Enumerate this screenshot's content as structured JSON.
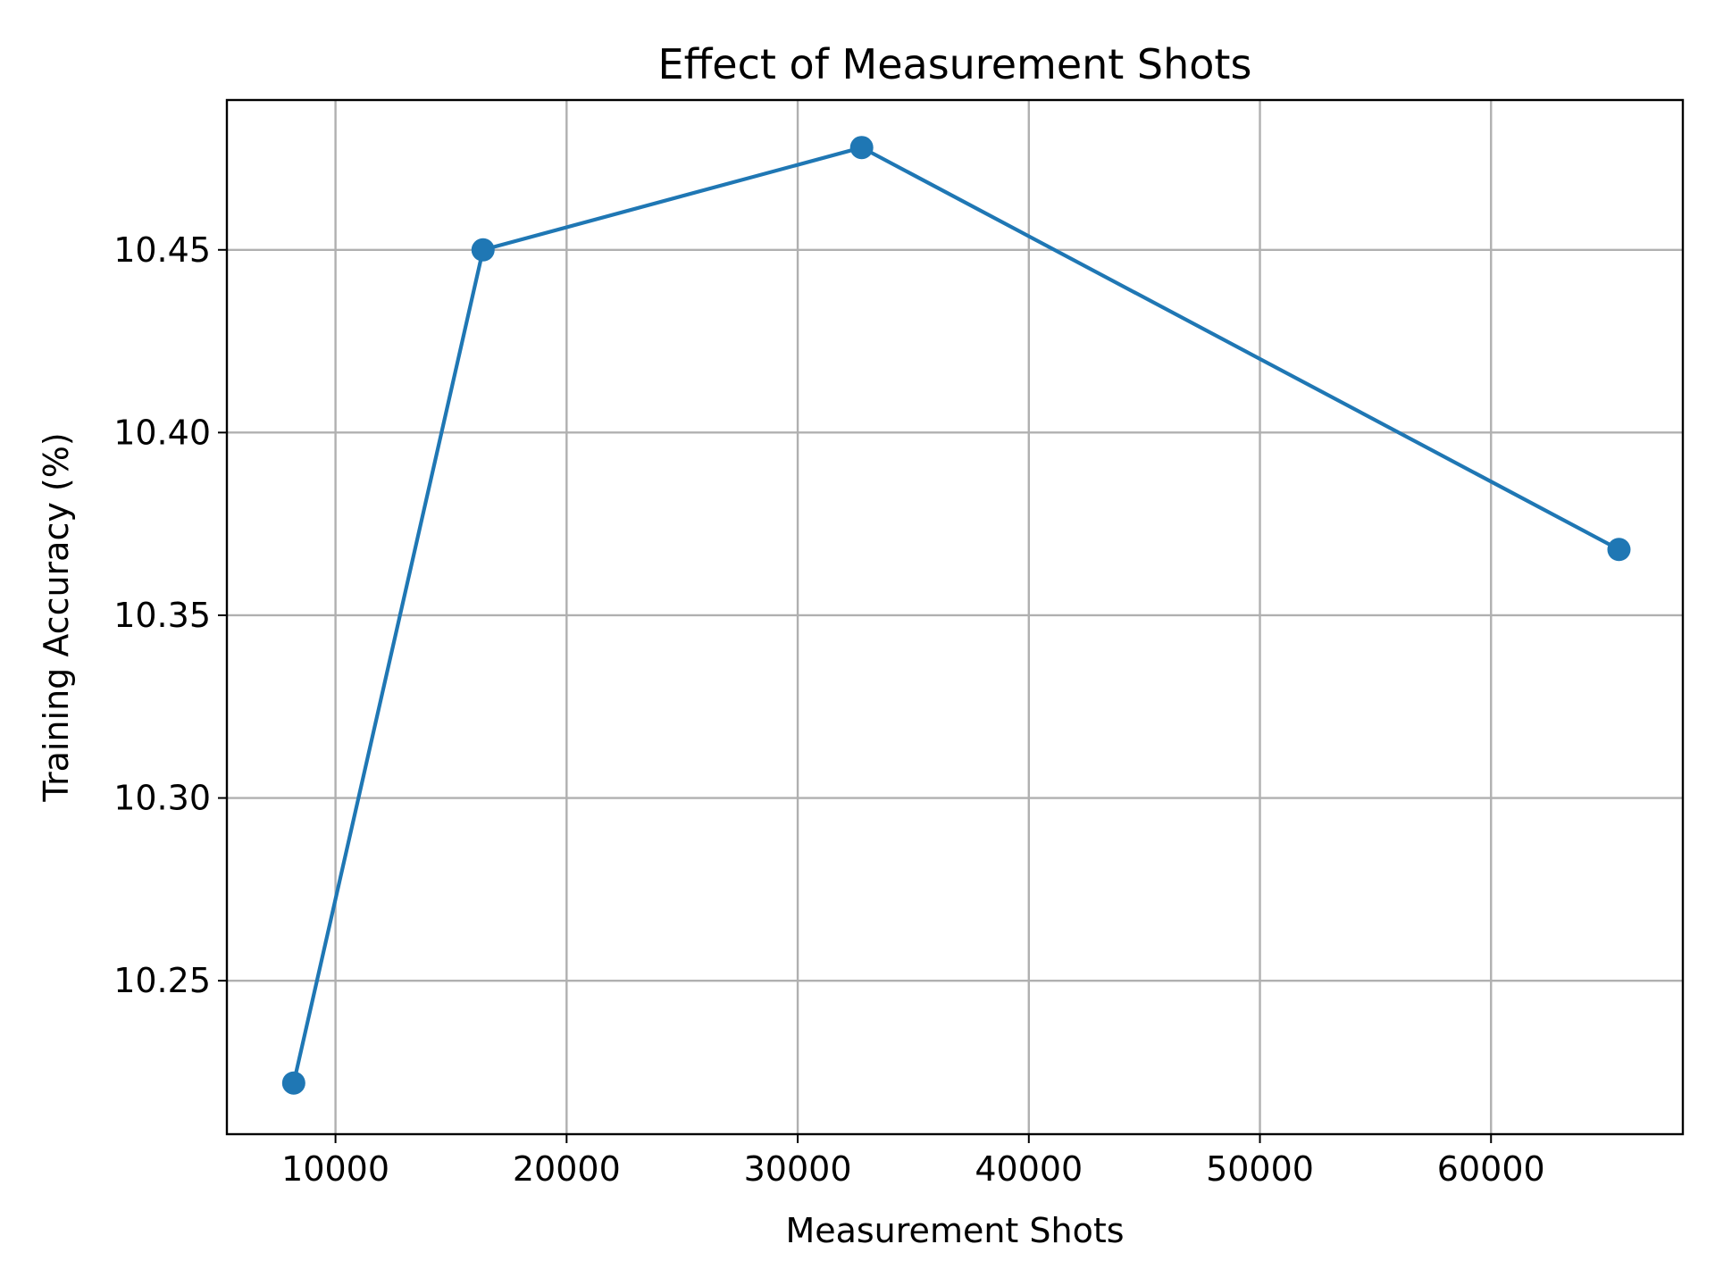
{
  "chart_data": {
    "type": "line",
    "title": "Effect of Measurement Shots",
    "xlabel": "Measurement Shots",
    "ylabel": "Training Accuracy (%)",
    "xlim": [
      5300,
      68300
    ],
    "ylim": [
      10.208,
      10.491
    ],
    "x_ticks": [
      10000,
      20000,
      30000,
      40000,
      50000,
      60000
    ],
    "x_tick_labels": [
      "10000",
      "20000",
      "30000",
      "40000",
      "50000",
      "60000"
    ],
    "y_ticks": [
      10.25,
      10.3,
      10.35,
      10.4,
      10.45
    ],
    "y_tick_labels": [
      "10.25",
      "10.30",
      "10.35",
      "10.40",
      "10.45"
    ],
    "grid": true,
    "series": [
      {
        "color": "#1f77b4",
        "marker": "circle",
        "x": [
          8192,
          16384,
          32768,
          65536
        ],
        "y": [
          10.222,
          10.45,
          10.478,
          10.368
        ]
      }
    ]
  }
}
